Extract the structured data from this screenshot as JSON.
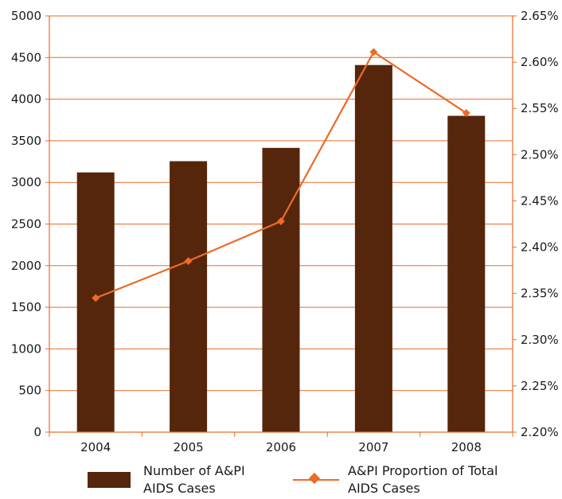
{
  "chart_data": {
    "type": "bar",
    "categories": [
      "2004",
      "2005",
      "2006",
      "2007",
      "2008"
    ],
    "series": [
      {
        "name": "Number of A&PI AIDS Cases",
        "type": "bar",
        "axis": "left",
        "values": [
          3120,
          3255,
          3415,
          4410,
          3800
        ]
      },
      {
        "name": "A&PI Proportion of Total AIDS Cases",
        "type": "line",
        "axis": "right",
        "values": [
          2.345,
          2.385,
          2.428,
          2.611,
          2.545
        ]
      }
    ],
    "ylim_left": [
      0,
      5000
    ],
    "yticks_left": [
      "0",
      "500",
      "1000",
      "1500",
      "2000",
      "2500",
      "3000",
      "3500",
      "4000",
      "4500",
      "5000"
    ],
    "ylim_right": [
      2.2,
      2.65
    ],
    "yticks_right": [
      "2.20%",
      "2.25%",
      "2.30%",
      "2.35%",
      "2.40%",
      "2.45%",
      "2.50%",
      "2.55%",
      "2.60%",
      "2.65%"
    ],
    "grid": true,
    "legend_position": "bottom",
    "legend": [
      {
        "line1": "Number of A&PI",
        "line2": "AIDS Cases"
      },
      {
        "line1": "A&PI Proportion of Total",
        "line2": "AIDS Cases"
      }
    ],
    "colors": {
      "bar": "#55260b",
      "line": "#ea6c29",
      "grid": "#ea6c29",
      "axis": "#ea6c29"
    }
  }
}
